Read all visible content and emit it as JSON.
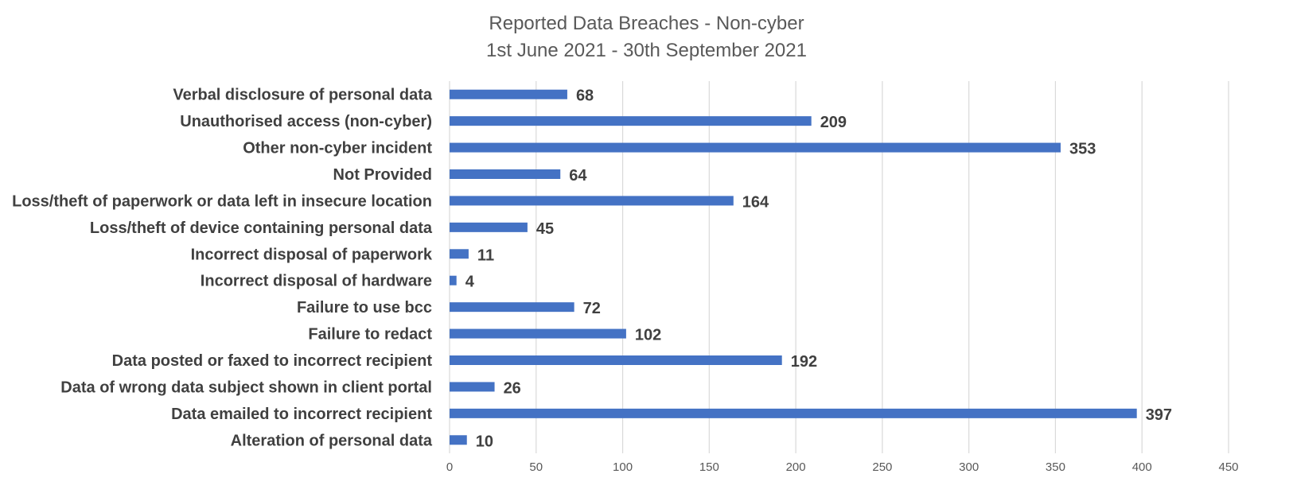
{
  "chart_data": {
    "type": "bar",
    "orientation": "horizontal",
    "title": "Reported Data Breaches - Non-cyber",
    "subtitle": "1st June 2021 - 30th September 2021",
    "categories": [
      "Verbal disclosure of personal data",
      "Unauthorised access (non-cyber)",
      "Other non-cyber incident",
      "Not Provided",
      "Loss/theft of paperwork or data left in insecure location",
      "Loss/theft of device containing personal data",
      "Incorrect disposal of paperwork",
      "Incorrect disposal of hardware",
      "Failure to use bcc",
      "Failure to redact",
      "Data posted or faxed to incorrect recipient",
      "Data of wrong data subject shown in client portal",
      "Data emailed to incorrect recipient",
      "Alteration of personal data"
    ],
    "values": [
      68,
      209,
      353,
      64,
      164,
      45,
      11,
      4,
      72,
      102,
      192,
      26,
      397,
      10
    ],
    "xlim": [
      0,
      450
    ],
    "xticks": [
      "0",
      "50",
      "100",
      "150",
      "200",
      "250",
      "300",
      "350",
      "400",
      "450"
    ],
    "xlabel": "",
    "ylabel": "",
    "grid": "vertical",
    "legend": "none",
    "data_labels": true,
    "colors": {
      "bar": "#4472C4",
      "grid": "#D9D9D9",
      "text": "#404040"
    }
  }
}
